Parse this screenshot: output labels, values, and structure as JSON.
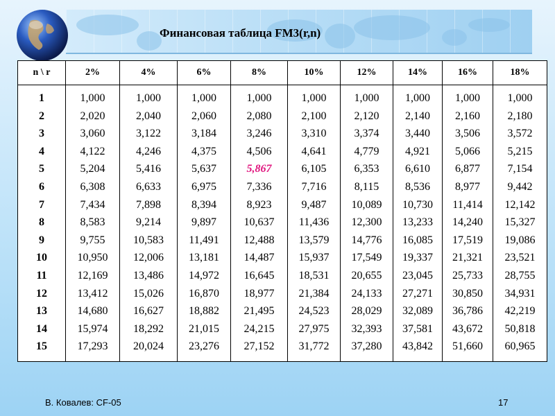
{
  "title": "Финансовая таблица FM3(r,n)",
  "table": {
    "headers": [
      "n \\ r",
      "2%",
      "4%",
      "6%",
      "8%",
      "10%",
      "12%",
      "14%",
      "16%",
      "18%"
    ],
    "n_values": [
      "1",
      "2",
      "3",
      "4",
      "5",
      "6",
      "7",
      "8",
      "9",
      "10",
      "11",
      "12",
      "13",
      "14",
      "15"
    ],
    "columns": [
      [
        "1,000",
        "2,020",
        "3,060",
        "4,122",
        "5,204",
        "6,308",
        "7,434",
        "8,583",
        "9,755",
        "10,950",
        "12,169",
        "13,412",
        "14,680",
        "15,974",
        "17,293"
      ],
      [
        "1,000",
        "2,040",
        "3,122",
        "4,246",
        "5,416",
        "6,633",
        "7,898",
        "9,214",
        "10,583",
        "12,006",
        "13,486",
        "15,026",
        "16,627",
        "18,292",
        "20,024"
      ],
      [
        "1,000",
        "2,060",
        "3,184",
        "4,375",
        "5,637",
        "6,975",
        "8,394",
        "9,897",
        "11,491",
        "13,181",
        "14,972",
        "16,870",
        "18,882",
        "21,015",
        "23,276"
      ],
      [
        "1,000",
        "2,080",
        "3,246",
        "4,506",
        "5,867",
        "7,336",
        "8,923",
        "10,637",
        "12,488",
        "14,487",
        "16,645",
        "18,977",
        "21,495",
        "24,215",
        "27,152"
      ],
      [
        "1,000",
        "2,100",
        "3,310",
        "4,641",
        "6,105",
        "7,716",
        "9,487",
        "11,436",
        "13,579",
        "15,937",
        "18,531",
        "21,384",
        "24,523",
        "27,975",
        "31,772"
      ],
      [
        "1,000",
        "2,120",
        "3,374",
        "4,779",
        "6,353",
        "8,115",
        "10,089",
        "12,300",
        "14,776",
        "17,549",
        "20,655",
        "24,133",
        "28,029",
        "32,393",
        "37,280"
      ],
      [
        "1,000",
        "2,140",
        "3,440",
        "4,921",
        "6,610",
        "8,536",
        "10,730",
        "13,233",
        "16,085",
        "19,337",
        "23,045",
        "27,271",
        "32,089",
        "37,581",
        "43,842"
      ],
      [
        "1,000",
        "2,160",
        "3,506",
        "5,066",
        "6,877",
        "8,977",
        "11,414",
        "14,240",
        "17,519",
        "21,321",
        "25,733",
        "30,850",
        "36,786",
        "43,672",
        "51,660"
      ],
      [
        "1,000",
        "2,180",
        "3,572",
        "5,215",
        "7,154",
        "9,442",
        "12,142",
        "15,327",
        "19,086",
        "23,521",
        "28,755",
        "34,931",
        "42,219",
        "50,818",
        "60,965"
      ]
    ],
    "highlight_color": "#e0157e"
  },
  "footer": {
    "author": "В. Ковалев: CF-05",
    "page": "17"
  }
}
